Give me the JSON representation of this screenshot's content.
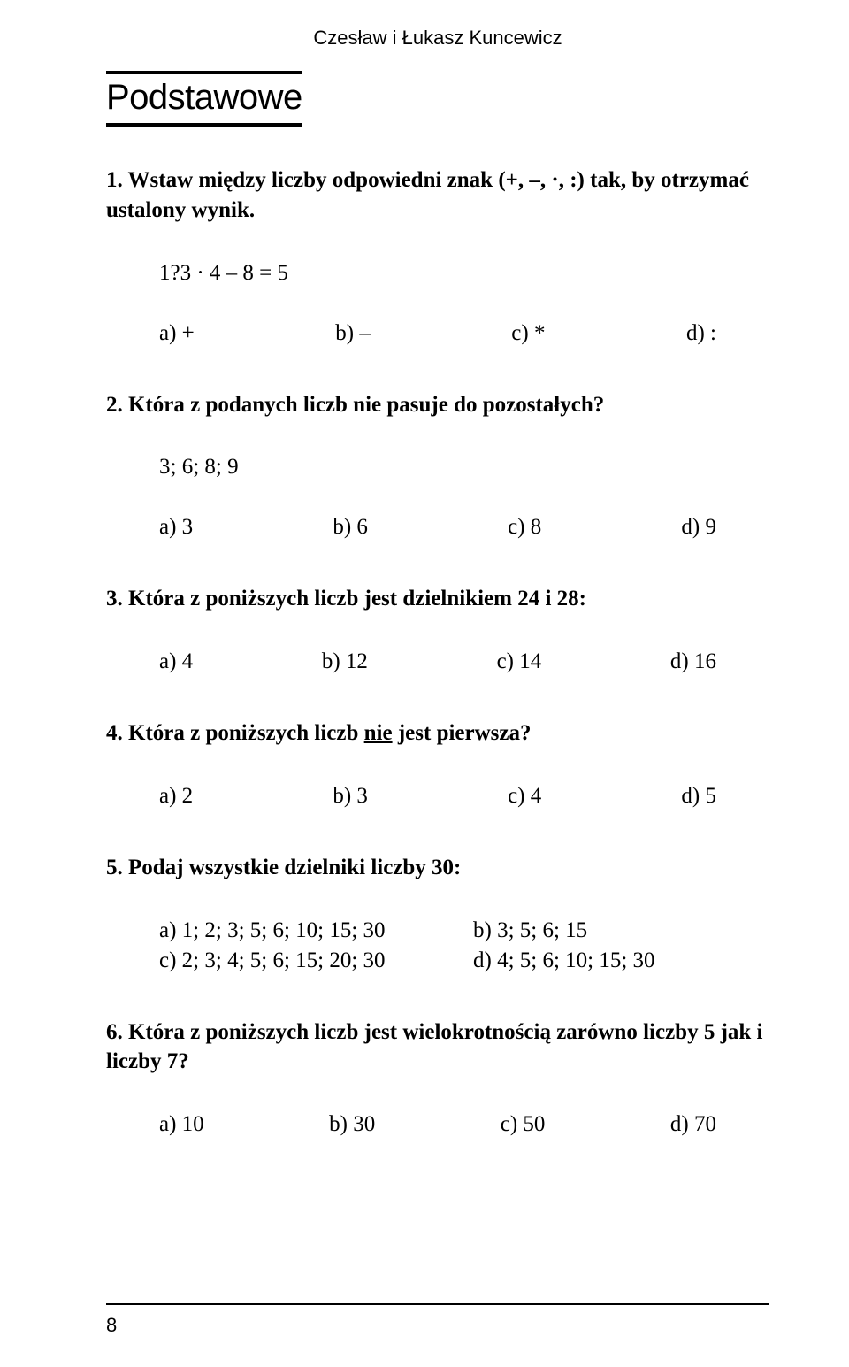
{
  "authors": "Czesław i Łukasz Kuncewicz",
  "section_title": "Podstawowe",
  "page_number": "8",
  "problems": [
    {
      "prompt_pre": "1. Wstaw między liczby odpowiedni znak (+, –, ·, :) tak, by otrzymać ustalony wynik.",
      "given": "1?3 · 4 – 8 = 5",
      "a": "a) +",
      "b": "b) –",
      "c": "c) *",
      "d": "d) :"
    },
    {
      "prompt_pre": "2. Która z podanych liczb nie pasuje do pozostałych?",
      "given": "3; 6; 8; 9",
      "a": "a) 3",
      "b": "b) 6",
      "c": "c) 8",
      "d": "d) 9"
    },
    {
      "prompt_pre": "3. Która z poniższych liczb jest dzielnikiem 24 i 28:",
      "a": "a) 4",
      "b": "b) 12",
      "c": "c) 14",
      "d": "d) 16"
    },
    {
      "prompt_pre": "4. Która z poniższych liczb ",
      "prompt_u": "nie",
      "prompt_post": " jest pierwsza?",
      "a": "a) 2",
      "b": "b) 3",
      "c": "c) 4",
      "d": "d) 5"
    },
    {
      "prompt_pre": "5. Podaj wszystkie dzielniki liczby 30:",
      "a": "a) 1; 2; 3; 5; 6; 10; 15; 30",
      "b": "b) 3; 5; 6; 15",
      "c": "c) 2; 3; 4; 5; 6; 15; 20; 30",
      "d": "d) 4; 5; 6; 10; 15; 30"
    },
    {
      "prompt_pre": "6. Która z poniższych liczb jest wielokrotnością zarówno liczby 5 jak i liczby 7?",
      "a": "a) 10",
      "b": "b) 30",
      "c": "c) 50",
      "d": "d) 70"
    }
  ]
}
